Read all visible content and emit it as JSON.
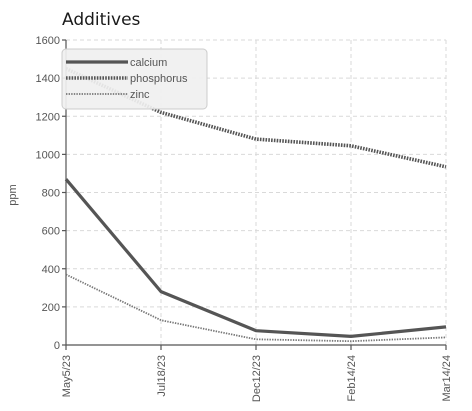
{
  "chart_data": {
    "type": "line",
    "title": "Additives",
    "ylabel": "ppm",
    "xlabel": "",
    "categories": [
      "May5/23",
      "Jul18/23",
      "Dec12/23",
      "Feb14/24",
      "Mar14/24"
    ],
    "ylim": [
      0,
      1600
    ],
    "yticks": [
      0,
      200,
      400,
      600,
      800,
      1000,
      1200,
      1400,
      1600
    ],
    "grid": true,
    "legend_position": "top-left",
    "series": [
      {
        "name": "calcium",
        "values": [
          870,
          280,
          75,
          45,
          95
        ],
        "color": "#555555",
        "style": "solid"
      },
      {
        "name": "phosphorus",
        "values": [
          1450,
          1220,
          1080,
          1045,
          935
        ],
        "color": "#555555",
        "style": "dotted-thick"
      },
      {
        "name": "zinc",
        "values": [
          370,
          130,
          30,
          20,
          40
        ],
        "color": "#777777",
        "style": "dotted-thin"
      }
    ]
  }
}
